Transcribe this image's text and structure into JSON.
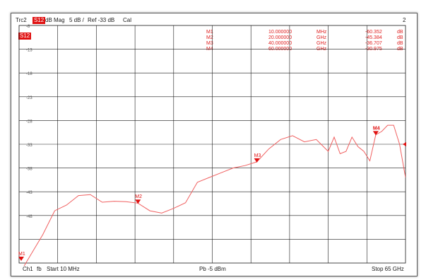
{
  "header": {
    "trace": "Trc2",
    "param": "S12",
    "format": "dB Mag",
    "scale": "5 dB /",
    "ref": "Ref -33 dB",
    "cal": "Cal",
    "channel_number": "2",
    "trace_tag": "S12"
  },
  "footer": {
    "channel": "Ch1",
    "fb": "fb",
    "start": "Start  10 MHz",
    "power": "Pb  -5 dBm",
    "stop": "Stop  65 GHz"
  },
  "markers_table": [
    {
      "name": "M1",
      "freq": "10.000000",
      "unit": "MHz",
      "value": "-60.352",
      "vunit": "dB"
    },
    {
      "name": "M2",
      "freq": "20.000000",
      "unit": "GHz",
      "value": "-45.384",
      "vunit": "dB"
    },
    {
      "name": "M3",
      "freq": "40.000000",
      "unit": "GHz",
      "value": "-36.707",
      "vunit": "dB"
    },
    {
      "name": "M4",
      "freq": "60.000000",
      "unit": "GHz",
      "value": "-30.975",
      "vunit": "dB"
    }
  ],
  "colors": {
    "trace": "#f06060",
    "marker": "#e01010",
    "grid": "#1a1a1a"
  },
  "chart_data": {
    "type": "line",
    "title": "",
    "xlabel": "",
    "ylabel": "",
    "xlim": [
      0.01,
      65
    ],
    "ylim": [
      -58,
      -8
    ],
    "grid": true,
    "ytick_labels": [
      "-8",
      "-13",
      "-18",
      "-23",
      "-28",
      "-33",
      "-38",
      "-43",
      "-48"
    ],
    "ytick_values": [
      -8,
      -13,
      -18,
      -23,
      -28,
      -33,
      -38,
      -43,
      -48
    ],
    "series": [
      {
        "x": [
          0.01,
          4,
          6,
          8,
          10,
          12,
          14,
          16,
          18,
          20,
          22,
          24,
          26,
          28,
          30,
          32,
          34,
          36,
          38,
          40,
          42,
          44,
          46,
          48,
          50,
          52,
          53,
          54,
          55,
          56,
          57,
          58,
          59,
          60,
          61,
          62,
          63,
          64,
          65
        ],
        "y": [
          -60.4,
          -52,
          -47,
          -45.8,
          -43.8,
          -43.6,
          -45.2,
          -45,
          -45.1,
          -45.4,
          -47,
          -47.5,
          -46.5,
          -45.3,
          -41,
          -40,
          -39,
          -38,
          -37.5,
          -36.7,
          -34,
          -32,
          -31.2,
          -32.5,
          -32,
          -34.5,
          -31.5,
          -35,
          -34.5,
          -31.5,
          -33.5,
          -34.5,
          -36.5,
          -31,
          -30.3,
          -29,
          -29,
          -33,
          -40
        ]
      }
    ],
    "markers": [
      {
        "name": "M1",
        "x": 0.01,
        "y": -60.352
      },
      {
        "name": "M2",
        "x": 20,
        "y": -45.384
      },
      {
        "name": "M3",
        "x": 40,
        "y": -36.707
      },
      {
        "name": "M4",
        "x": 60,
        "y": -30.975
      }
    ]
  }
}
